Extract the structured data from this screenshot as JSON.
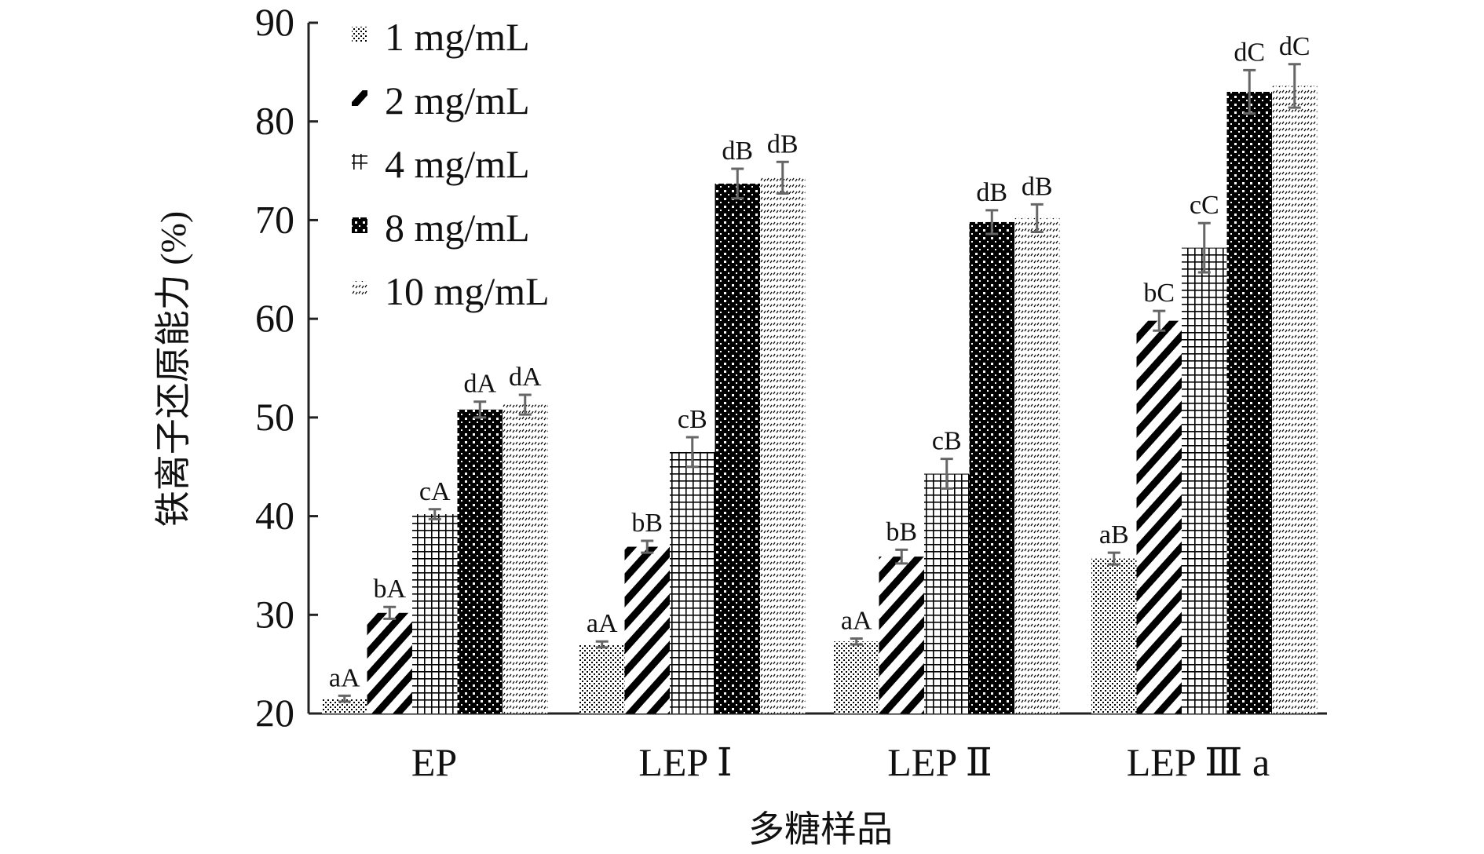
{
  "chart_data": {
    "type": "bar",
    "title": "",
    "xlabel": "多糖样品",
    "ylabel": "铁离子还原能力 (%)",
    "ylim": [
      20,
      90
    ],
    "yticks": [
      20,
      30,
      40,
      50,
      60,
      70,
      80,
      90
    ],
    "grid": false,
    "legend_position": "top-left",
    "categories": [
      "EP",
      "LEP Ⅰ",
      "LEP Ⅱ",
      "LEP Ⅲ a"
    ],
    "series": [
      {
        "name": "1 mg/mL",
        "pattern": "dots",
        "values": [
          21.5,
          27.0,
          27.3,
          35.7
        ],
        "errors": [
          0.3,
          0.3,
          0.3,
          0.6
        ],
        "labels": [
          "aA",
          "aA",
          "aA",
          "aB"
        ]
      },
      {
        "name": "2 mg/mL",
        "pattern": "diagonal",
        "values": [
          30.2,
          36.9,
          35.9,
          59.8
        ],
        "errors": [
          0.6,
          0.6,
          0.7,
          1.0
        ],
        "labels": [
          "bA",
          "bB",
          "bB",
          "bC"
        ]
      },
      {
        "name": "4 mg/mL",
        "pattern": "grid",
        "values": [
          40.2,
          46.5,
          44.3,
          67.2
        ],
        "errors": [
          0.5,
          1.5,
          1.5,
          2.5
        ],
        "labels": [
          "cA",
          "cB",
          "cB",
          "cC"
        ]
      },
      {
        "name": "8 mg/mL",
        "pattern": "checker",
        "values": [
          50.8,
          73.7,
          69.8,
          83.0
        ],
        "errors": [
          0.8,
          1.5,
          1.2,
          2.2
        ],
        "labels": [
          "dA",
          "dB",
          "dB",
          "dC"
        ]
      },
      {
        "name": "10 mg/mL",
        "pattern": "hooks",
        "values": [
          51.3,
          74.3,
          70.2,
          83.6
        ],
        "errors": [
          1.0,
          1.6,
          1.4,
          2.2
        ],
        "labels": [
          "dA",
          "dB",
          "dB",
          "dC"
        ]
      }
    ],
    "colors": {
      "bar_fill": "#000000",
      "error_bar": "#666666",
      "axis": "#222222"
    }
  }
}
